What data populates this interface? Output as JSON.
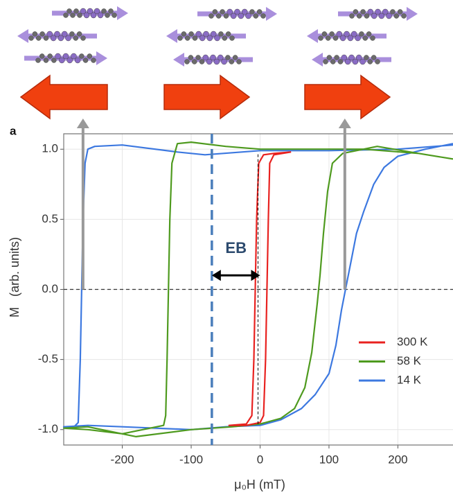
{
  "chart_data": {
    "type": "line",
    "panel_label": "a",
    "x_label": "μ₀H (mT)",
    "y_label": "M   (arb. units)",
    "xlim": [
      -285,
      280
    ],
    "ylim": [
      -1.11,
      1.11
    ],
    "xticks": [
      -200,
      -100,
      0,
      100,
      200
    ],
    "yticks": [
      {
        "value": 1,
        "label": "1.0"
      },
      0.5,
      {
        "value": 0,
        "label": "0.0"
      },
      -0.5,
      {
        "value": -1,
        "label": "-1.0"
      }
    ],
    "grid": true,
    "legend": "lower right",
    "series": [
      {
        "name": "300 K",
        "color": "#e8211f",
        "x": [
          45,
          20,
          5,
          -2,
          -5,
          -7,
          -9,
          -12,
          -20,
          -45,
          -20,
          0,
          5,
          8,
          10,
          12,
          14,
          20,
          45
        ],
        "values": [
          0.98,
          0.97,
          0.96,
          0.9,
          0.5,
          0,
          -0.5,
          -0.9,
          -0.96,
          -0.97,
          -0.97,
          -0.95,
          -0.9,
          -0.5,
          0,
          0.5,
          0.9,
          0.96,
          0.98
        ]
      },
      {
        "name": "58 K",
        "color": "#4e9a1e",
        "x": [
          280,
          230,
          150,
          50,
          0,
          -50,
          -100,
          -120,
          -128,
          -131,
          -133,
          -135,
          -137,
          -140,
          -200,
          -250,
          -285,
          -250,
          -180,
          -100,
          -40,
          0,
          30,
          50,
          65,
          75,
          83,
          87,
          92,
          98,
          105,
          120,
          170,
          230,
          280
        ],
        "values": [
          0.93,
          0.97,
          1.0,
          1.0,
          1.0,
          1.02,
          1.05,
          1.04,
          0.9,
          0.5,
          0,
          -0.5,
          -0.9,
          -0.97,
          -1.03,
          -1.0,
          -0.99,
          -0.98,
          -1.05,
          -1.0,
          -0.98,
          -0.96,
          -0.92,
          -0.85,
          -0.7,
          -0.45,
          -0.1,
          0.1,
          0.4,
          0.7,
          0.9,
          0.97,
          1.02,
          0.97,
          0.93
        ]
      },
      {
        "name": "14 K",
        "color": "#3c78e0",
        "x": [
          280,
          200,
          100,
          0,
          -80,
          -120,
          -200,
          -240,
          -250,
          -254,
          -257,
          -259,
          -261,
          -264,
          -270,
          -285,
          -250,
          -200,
          -100,
          -50,
          0,
          30,
          60,
          80,
          100,
          110,
          118,
          124,
          132,
          140,
          150,
          165,
          180,
          200,
          240,
          280
        ],
        "values": [
          1.03,
          1.0,
          0.99,
          0.99,
          0.96,
          0.98,
          1.03,
          1.02,
          1.0,
          0.9,
          0.5,
          0,
          -0.5,
          -0.95,
          -0.98,
          -0.98,
          -0.97,
          -0.98,
          -1.0,
          -0.98,
          -0.97,
          -0.93,
          -0.85,
          -0.75,
          -0.6,
          -0.4,
          -0.15,
          0,
          0.2,
          0.4,
          0.55,
          0.75,
          0.87,
          0.95,
          1.0,
          1.04
        ]
      }
    ],
    "hlines": [
      {
        "y": 0,
        "color": "#333333"
      }
    ],
    "vlines": [
      {
        "x": -70,
        "color": "#4a7ebb"
      },
      {
        "x": -3,
        "color": "#000000",
        "span": [
          -0.96,
          0.97
        ]
      }
    ],
    "arrows": [
      {
        "x": -257
      },
      {
        "x": 123
      }
    ],
    "annotations": [
      {
        "text": "EB",
        "x": -70,
        "x2": 0,
        "y": 0.1
      }
    ]
  }
}
